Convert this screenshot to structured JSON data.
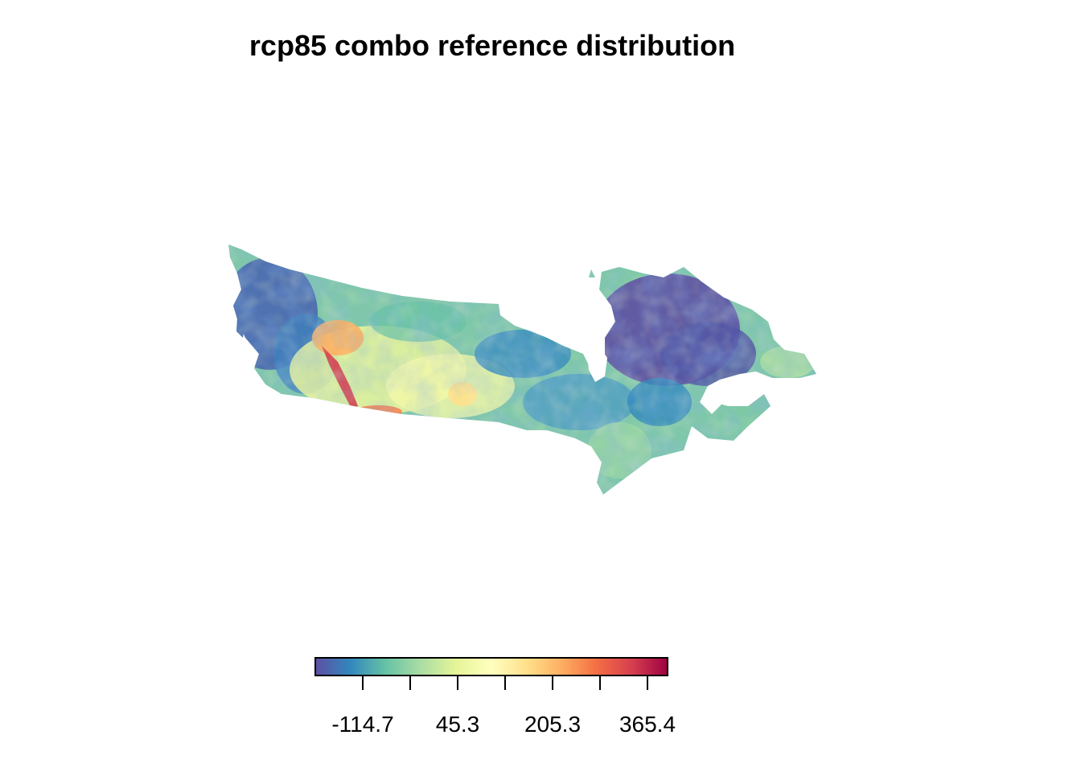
{
  "title": "rcp85 combo reference distribution",
  "legend": {
    "palette": [
      "#5e4fa2",
      "#3288bd",
      "#66c2a5",
      "#abdda4",
      "#e6f598",
      "#ffffbf",
      "#fee08b",
      "#fdae61",
      "#f46d43",
      "#d53e4f",
      "#9e0142"
    ],
    "tick_values": [
      -114.7,
      45.3,
      205.3,
      365.4
    ],
    "tick_labels": [
      "-114.7",
      "45.3",
      "205.3",
      "365.4"
    ]
  },
  "map": {
    "region": "Canada",
    "colormap": "spectral-reversed",
    "dominant_colors": {
      "low": "#5e4fa2",
      "mid": "#ffffbf",
      "high": "#9e0142"
    }
  }
}
